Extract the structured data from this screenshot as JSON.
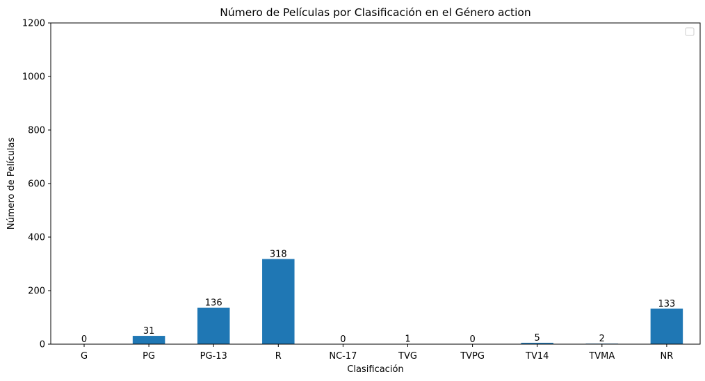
{
  "chart_data": {
    "type": "bar",
    "title": "Número de Películas por Clasificación en el Género action",
    "xlabel": "Clasificación",
    "ylabel": "Número de Películas",
    "categories": [
      "G",
      "PG",
      "PG-13",
      "R",
      "NC-17",
      "TVG",
      "TVPG",
      "TV14",
      "TVMA",
      "NR"
    ],
    "values": [
      0,
      31,
      136,
      318,
      0,
      1,
      0,
      5,
      2,
      133
    ],
    "data_labels": [
      "0",
      "31",
      "136",
      "318",
      "0",
      "1",
      "0",
      "5",
      "2",
      "133"
    ],
    "yticks": [
      0,
      200,
      400,
      600,
      800,
      1000,
      1200
    ],
    "ylim": [
      0,
      1200
    ],
    "grid": false,
    "legend": {
      "placement": "top-right",
      "entries": []
    },
    "bar_color": "#1f77b4"
  }
}
